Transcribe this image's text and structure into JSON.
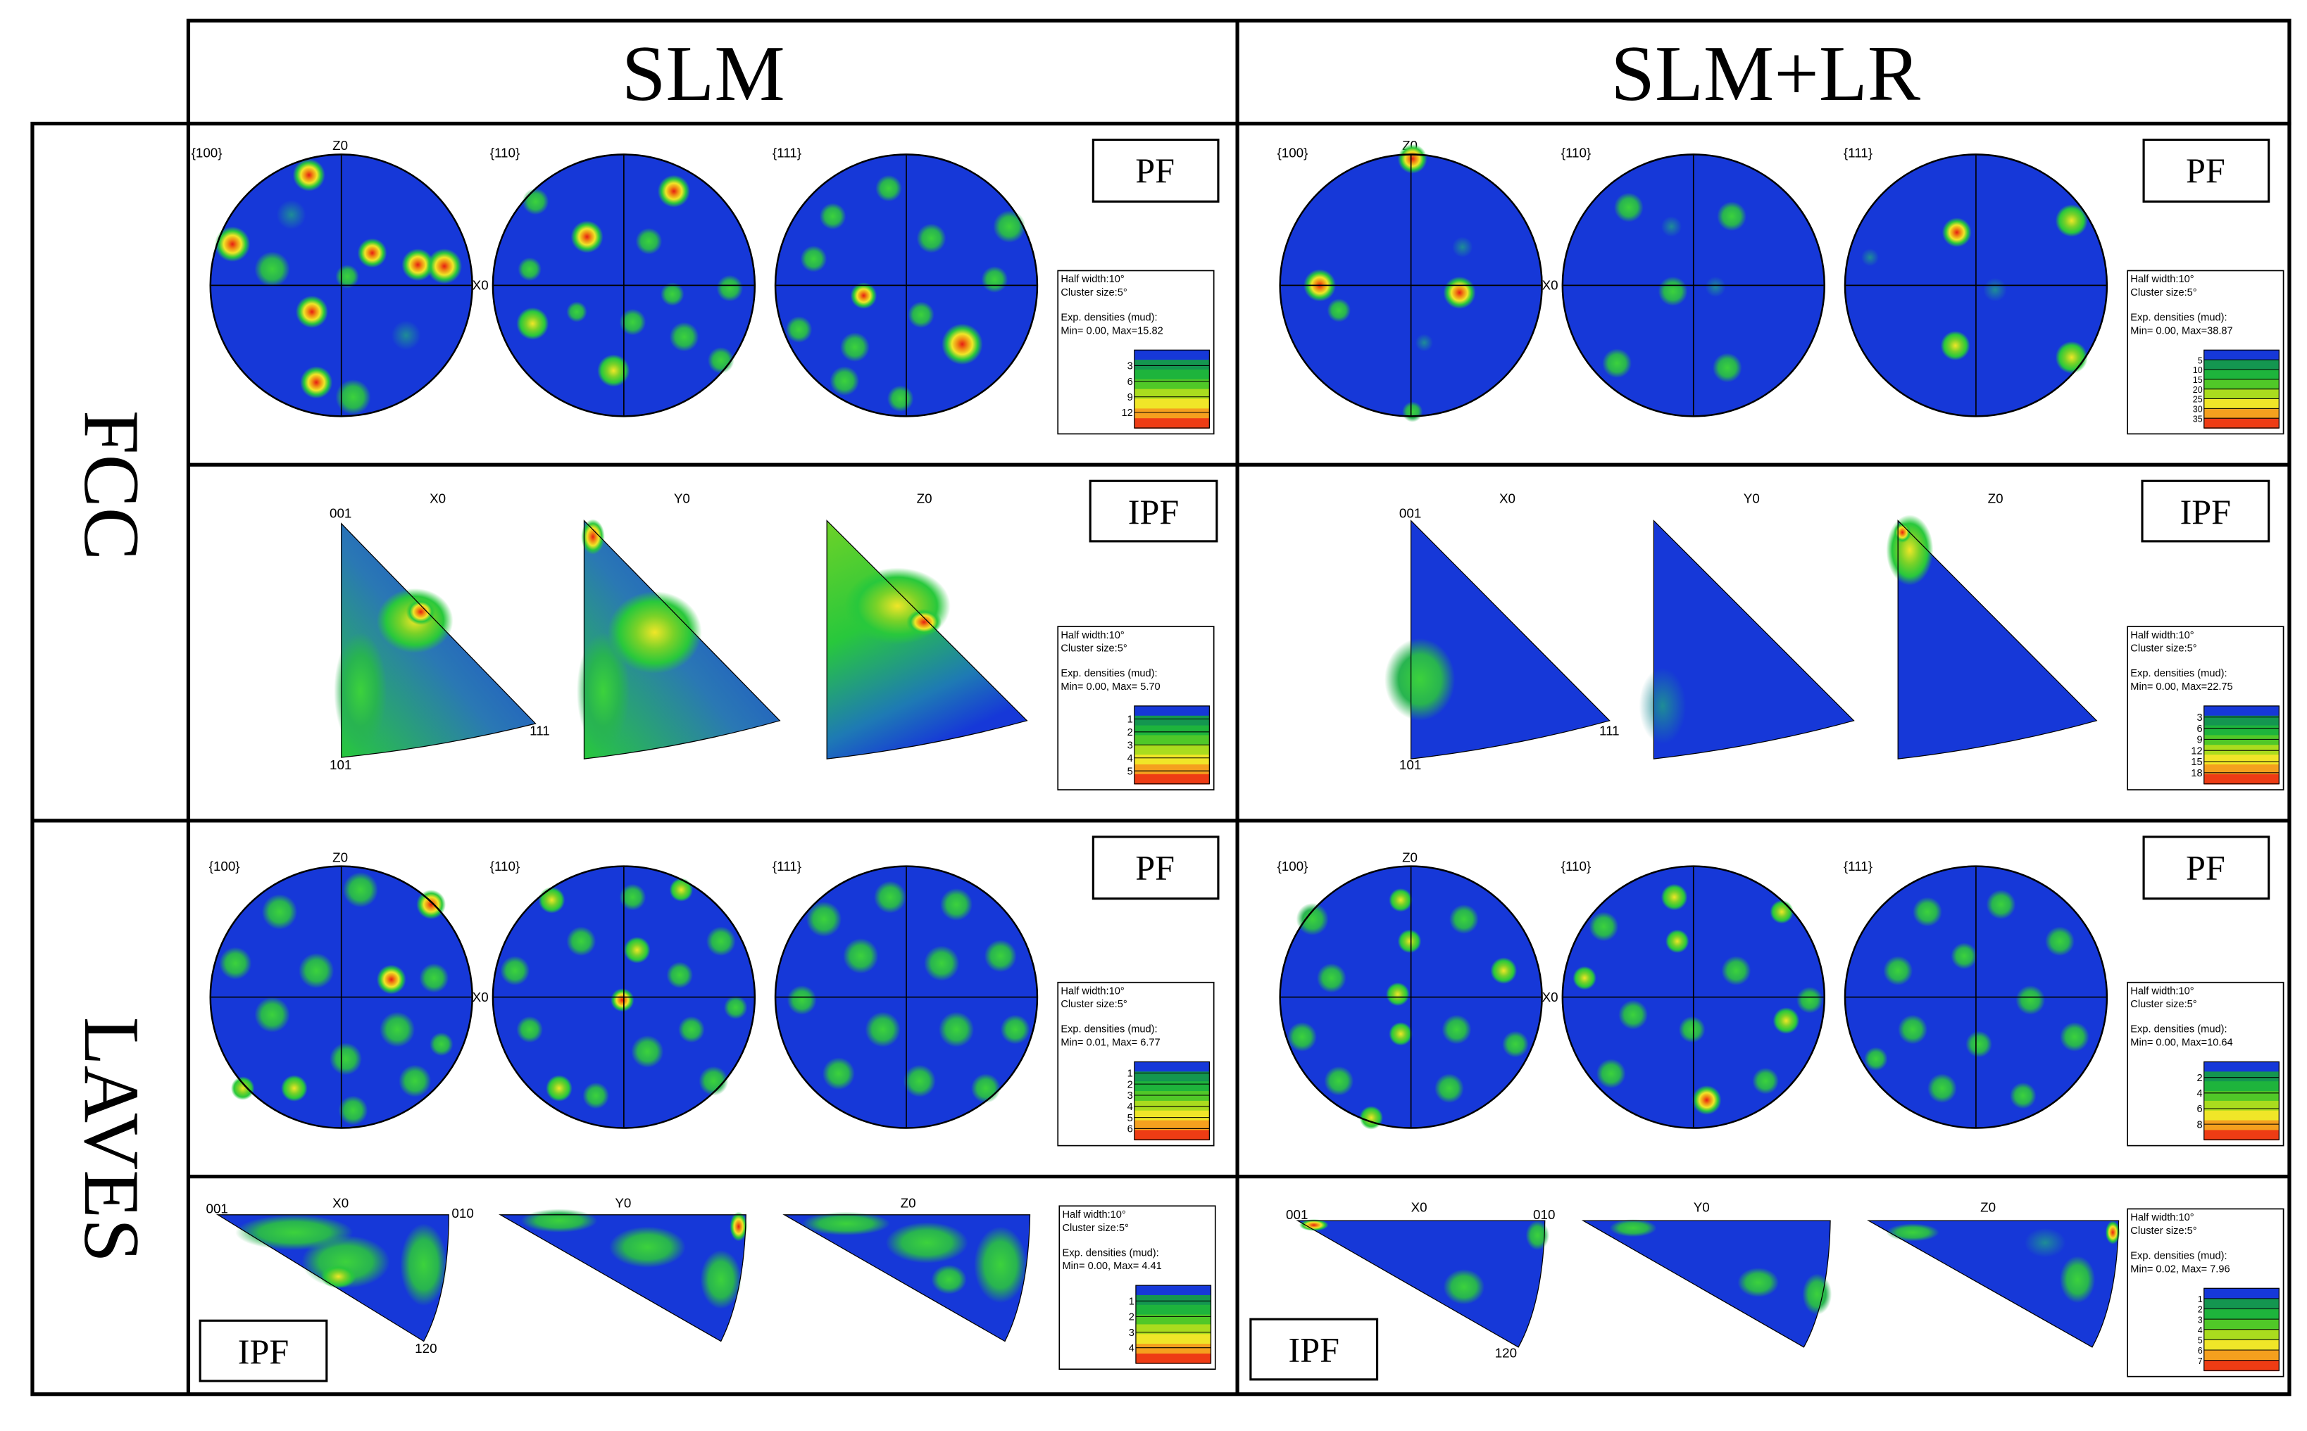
{
  "figure": {
    "columns": [
      "SLM",
      "SLM+LR"
    ],
    "rows": [
      "FCC",
      "LAVES"
    ]
  },
  "labels": {
    "pf": "PF",
    "ipf": "IPF",
    "x0": "X0",
    "y0": "Y0",
    "z0": "Z0",
    "pole_100": "{100}",
    "pole_110": "{110}",
    "pole_111": "{111}",
    "c001": "001",
    "c101": "101",
    "c111": "111",
    "c010": "010",
    "c120": "120",
    "legend_half": "Half width:10°",
    "legend_cluster": "Cluster size:5°",
    "legend_exp": "Exp. densities (mud):"
  },
  "panels": {
    "fcc_pf_slm": {
      "minmax": "Min= 0.00, Max=15.82",
      "ticks": [
        "3",
        "6",
        "9",
        "12"
      ]
    },
    "fcc_pf_lr": {
      "minmax": "Min= 0.00, Max=38.87",
      "ticks": [
        "5",
        "10",
        "15",
        "20",
        "25",
        "30",
        "35"
      ]
    },
    "fcc_ipf_slm": {
      "minmax": "Min= 0.00, Max= 5.70",
      "ticks": [
        "1",
        "2",
        "3",
        "4",
        "5"
      ]
    },
    "fcc_ipf_lr": {
      "minmax": "Min= 0.00, Max=22.75",
      "ticks": [
        "3",
        "6",
        "9",
        "12",
        "15",
        "18"
      ]
    },
    "laves_pf_slm": {
      "minmax": "Min= 0.01, Max= 6.77",
      "ticks": [
        "1",
        "2",
        "3",
        "4",
        "5",
        "6"
      ]
    },
    "laves_pf_lr": {
      "minmax": "Min= 0.00, Max=10.64",
      "ticks": [
        "2",
        "4",
        "6",
        "8"
      ]
    },
    "laves_ipf_slm": {
      "minmax": "Min= 0.00, Max= 4.41",
      "ticks": [
        "1",
        "2",
        "3",
        "4"
      ]
    },
    "laves_ipf_lr": {
      "minmax": "Min= 0.02, Max= 7.96",
      "ticks": [
        "1",
        "2",
        "3",
        "4",
        "5",
        "6",
        "7"
      ]
    }
  },
  "colors": {
    "base": "#1638d8",
    "green": "#28c83c",
    "yellow": "#f0e628",
    "orange": "#f08a14",
    "red": "#e61e14",
    "scale": [
      "#1638d8",
      "#149650",
      "#1eb43c",
      "#50c828",
      "#aadc1e",
      "#f0e628",
      "#f5a01e",
      "#ee3c14"
    ]
  }
}
